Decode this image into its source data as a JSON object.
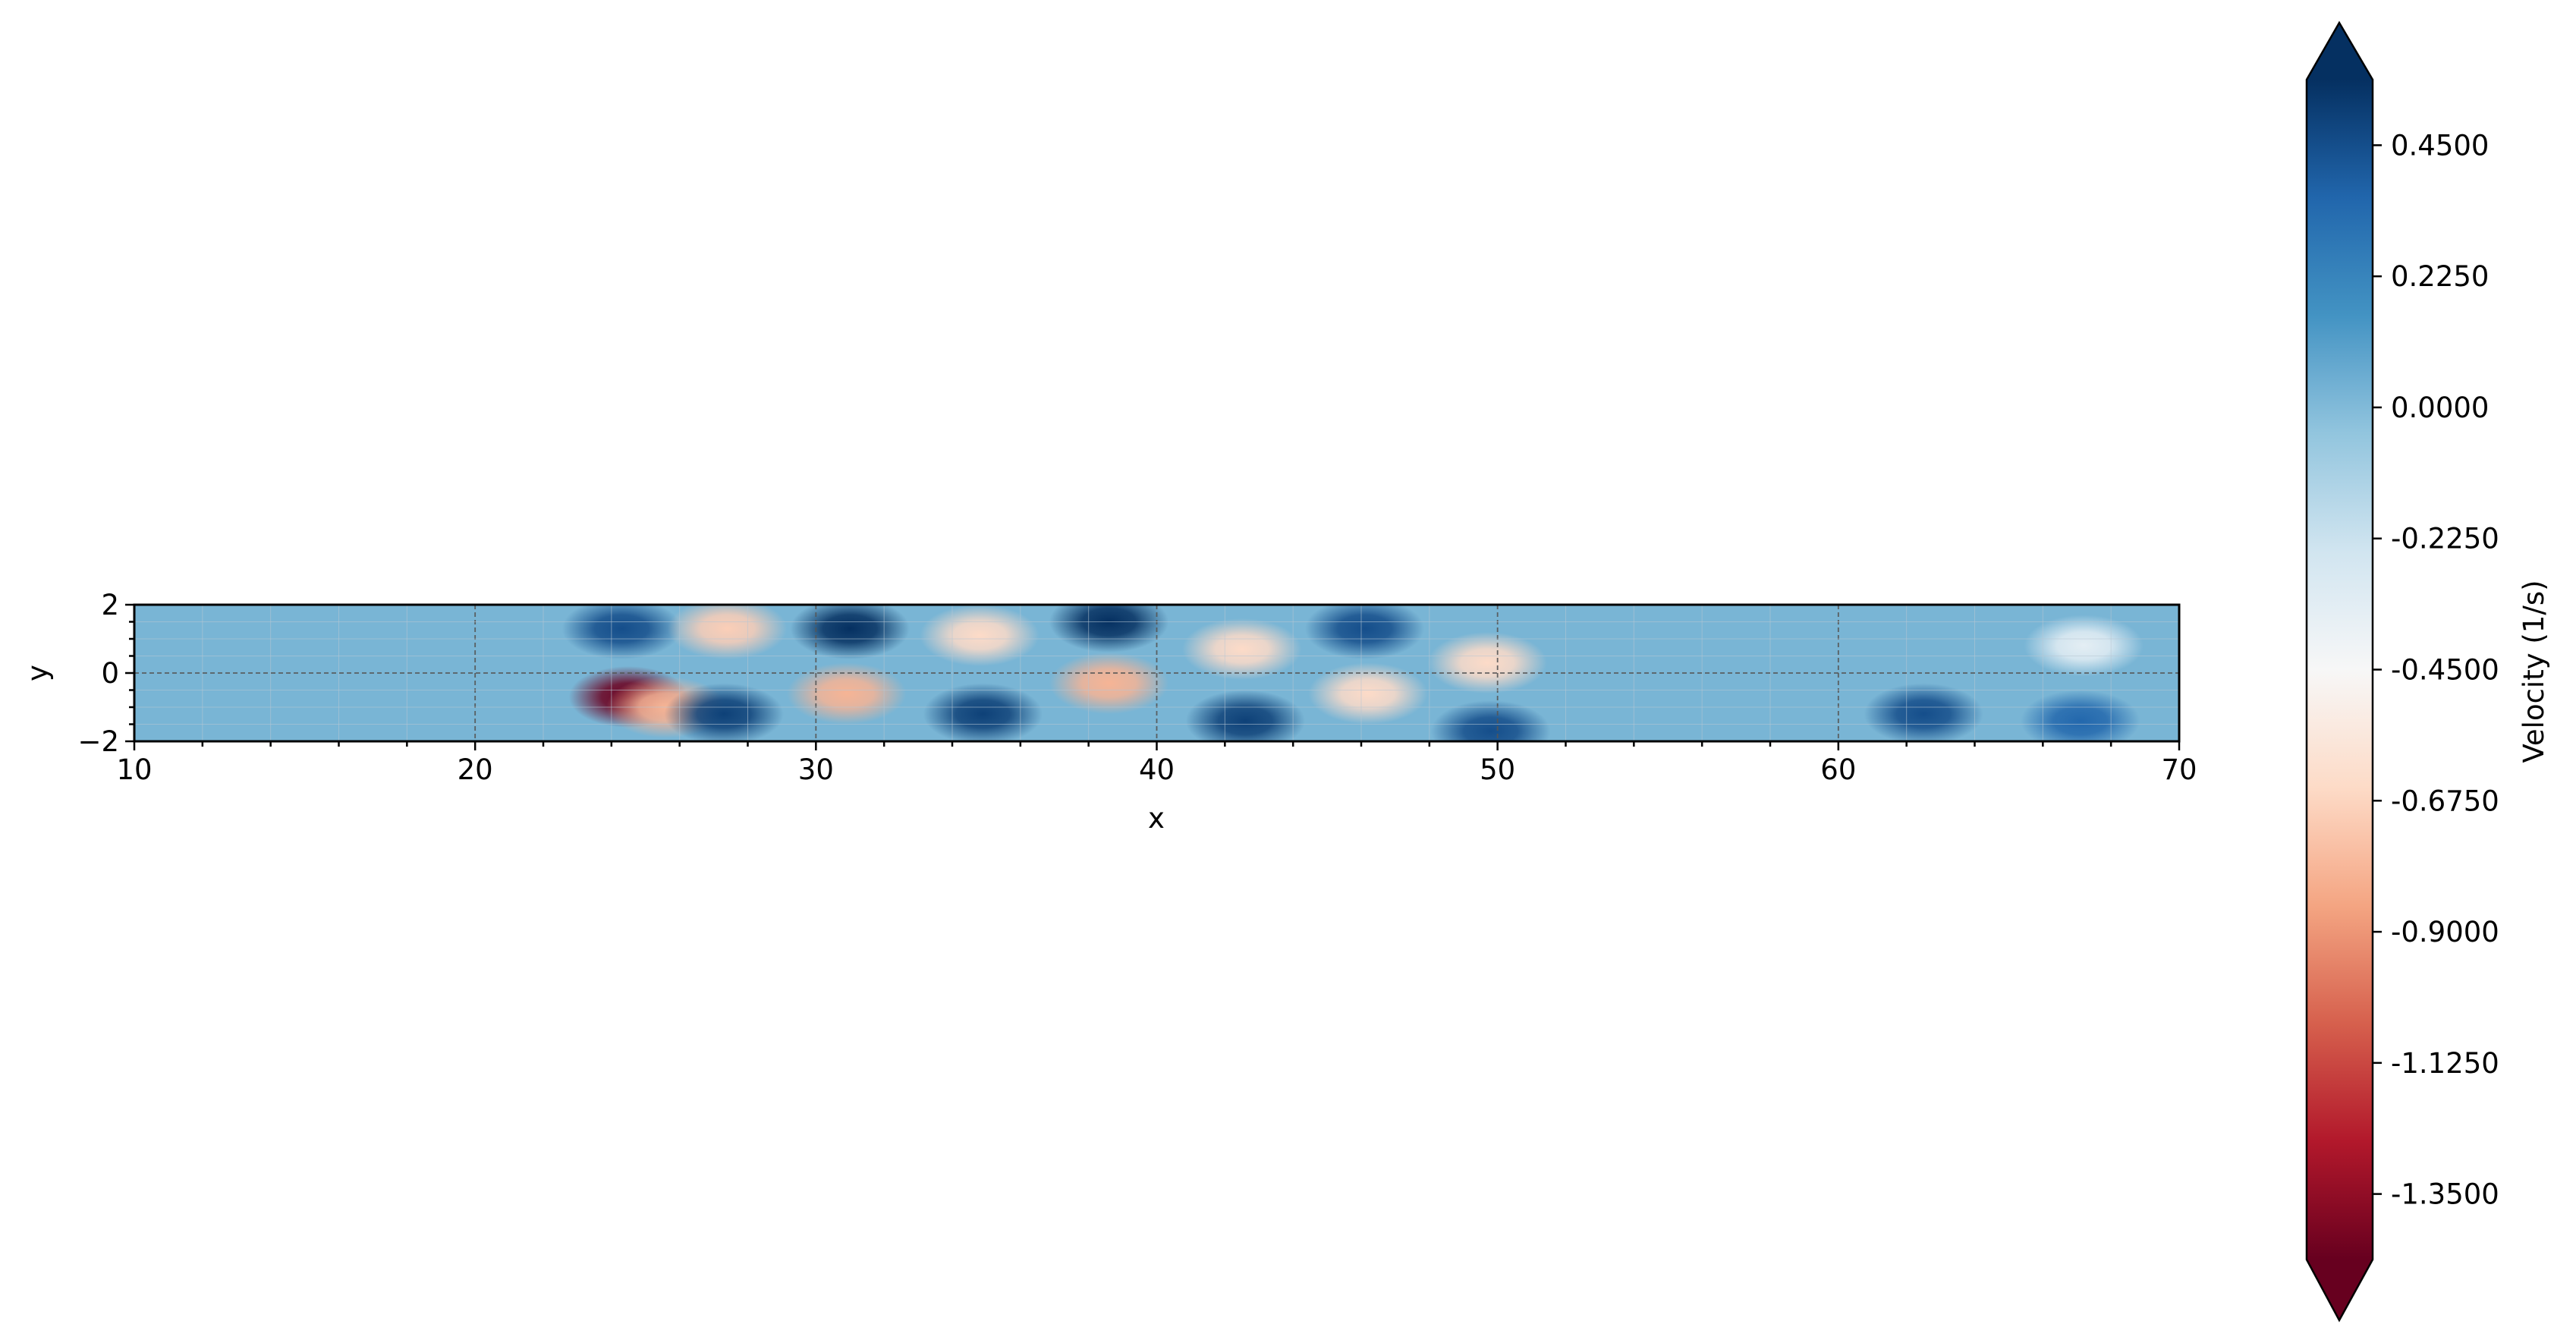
{
  "chart_data": {
    "type": "heatmap",
    "title": "",
    "xlabel": "x",
    "ylabel": "y",
    "xlim": [
      10,
      70
    ],
    "ylim": [
      -2,
      2
    ],
    "x_ticks": [
      10,
      20,
      30,
      40,
      50,
      60,
      70
    ],
    "y_ticks": [
      -2,
      0,
      2
    ],
    "x_tick_labels": [
      "10",
      "20",
      "30",
      "40",
      "50",
      "60",
      "70"
    ],
    "y_tick_labels": [
      "−2",
      "0",
      "2"
    ],
    "grid": true,
    "background_value": 0.02,
    "field_blobs": [
      {
        "x": 24.3,
        "y": 1.3,
        "value": 0.45
      },
      {
        "x": 24.5,
        "y": -0.7,
        "value": -1.45
      },
      {
        "x": 25.6,
        "y": -1.0,
        "value": -0.8
      },
      {
        "x": 27.3,
        "y": -1.2,
        "value": 0.5
      },
      {
        "x": 27.4,
        "y": 1.3,
        "value": -0.7
      },
      {
        "x": 31.0,
        "y": 1.3,
        "value": 0.6
      },
      {
        "x": 30.9,
        "y": -0.6,
        "value": -0.8
      },
      {
        "x": 34.8,
        "y": 1.1,
        "value": -0.65
      },
      {
        "x": 34.9,
        "y": -1.2,
        "value": 0.5
      },
      {
        "x": 38.6,
        "y": 1.5,
        "value": 0.65
      },
      {
        "x": 38.6,
        "y": -0.3,
        "value": -0.8
      },
      {
        "x": 42.5,
        "y": 0.7,
        "value": -0.65
      },
      {
        "x": 42.6,
        "y": -1.4,
        "value": 0.5
      },
      {
        "x": 46.1,
        "y": 1.3,
        "value": 0.45
      },
      {
        "x": 46.2,
        "y": -0.6,
        "value": -0.65
      },
      {
        "x": 49.7,
        "y": 0.3,
        "value": -0.65
      },
      {
        "x": 49.8,
        "y": -1.7,
        "value": 0.45
      },
      {
        "x": 62.5,
        "y": -1.2,
        "value": 0.45
      },
      {
        "x": 67.1,
        "y": -1.4,
        "value": 0.35
      },
      {
        "x": 67.2,
        "y": 0.8,
        "value": -0.35
      }
    ],
    "colorbar": {
      "label": "Velocity (1/s)",
      "colormap": "RdBu",
      "vmin": -1.4625,
      "vmax": 0.5625,
      "extend": "both",
      "ticks": [
        0.45,
        0.225,
        0.0,
        -0.225,
        -0.45,
        -0.675,
        -0.9,
        -1.125,
        -1.35
      ],
      "tick_labels": [
        "0.4500",
        "0.2250",
        "0.0000",
        "-0.2250",
        "-0.4500",
        "-0.6750",
        "-0.9000",
        "-1.1250",
        "-1.3500"
      ],
      "low_color": "#67001f",
      "high_color": "#053061"
    }
  }
}
